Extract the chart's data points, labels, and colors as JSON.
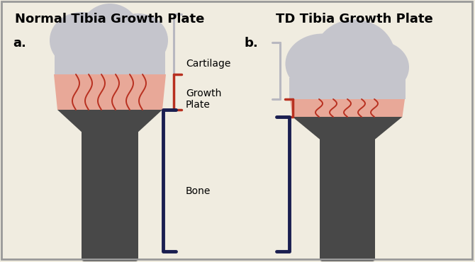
{
  "bg_color": "#f0ece0",
  "border_color": "#999999",
  "title_left": "Normal Tibia Growth Plate",
  "title_right": "TD Tibia Growth Plate",
  "label_a": "a.",
  "label_b": "b.",
  "label_cartilage": "Cartilage",
  "label_growth_plate": "Growth\nPlate",
  "label_bone": "Bone",
  "color_cartilage": "#c5c5cc",
  "color_growth_plate": "#e8a898",
  "color_bone": "#484848",
  "color_bracket_gray": "#b8b8c0",
  "color_bracket_red": "#b83020",
  "color_bracket_navy": "#1a1e50",
  "color_vessels": "#b83020",
  "figw": 6.7,
  "figh": 3.7,
  "dpi": 100
}
